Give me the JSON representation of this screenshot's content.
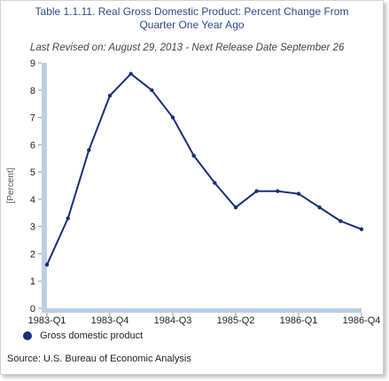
{
  "title_line1": "Table 1.1.11. Real Gross Domestic Product: Percent Change From",
  "title_line2": "Quarter One Year Ago",
  "subtitle": "Last Revised on: August 29, 2013 - Next Release Date September 26",
  "source": "Source: U.S. Bureau of Economic Analysis",
  "colors": {
    "series": "#1a2e7a",
    "axis_band": "#b8cfe4",
    "title": "#2c4a8c"
  },
  "chart_data": {
    "type": "line",
    "ylabel": "[Percent]",
    "ylim": [
      0,
      9
    ],
    "yticks": [
      "0",
      "1",
      "2",
      "3",
      "4",
      "5",
      "6",
      "7",
      "8",
      "9"
    ],
    "grid": false,
    "legend_position": "bottom-left",
    "x": [
      "1983-Q1",
      "1983-Q2",
      "1983-Q3",
      "1983-Q4",
      "1984-Q1",
      "1984-Q2",
      "1984-Q3",
      "1984-Q4",
      "1985-Q1",
      "1985-Q2",
      "1985-Q3",
      "1985-Q4",
      "1986-Q1",
      "1986-Q2",
      "1986-Q3",
      "1986-Q4"
    ],
    "x_tick_labels": [
      "1983-Q1",
      "1983-Q4",
      "1984-Q3",
      "1985-Q2",
      "1986-Q1",
      "1986-Q4"
    ],
    "series": [
      {
        "name": "Gross domestic product",
        "values": [
          1.6,
          3.3,
          5.8,
          7.8,
          8.6,
          8.0,
          7.0,
          5.6,
          4.6,
          3.7,
          4.3,
          4.3,
          4.2,
          3.7,
          3.2,
          2.9
        ]
      }
    ]
  }
}
